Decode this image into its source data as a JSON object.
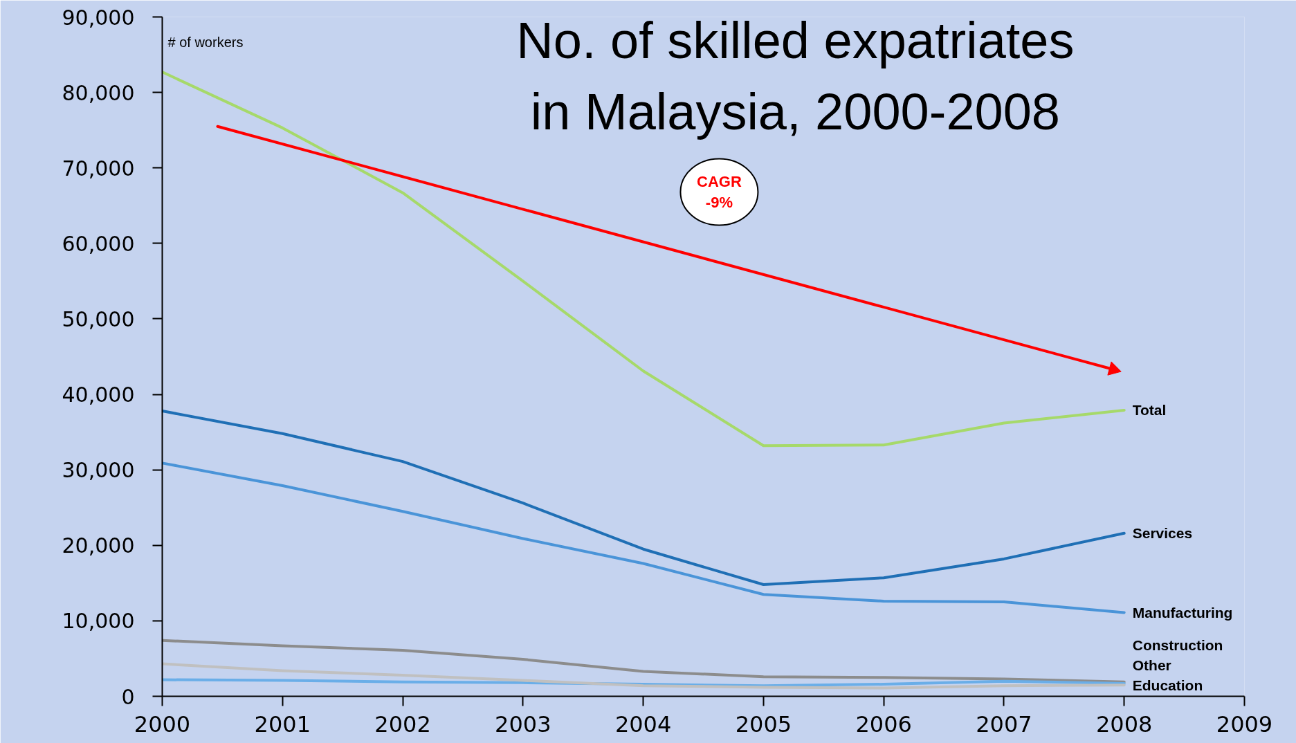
{
  "chart_data": {
    "type": "line",
    "title": "No. of skilled expatriates\nin Malaysia, 2000-2008",
    "ylabel": "# of workers",
    "x": [
      2000,
      2001,
      2002,
      2003,
      2004,
      2005,
      2006,
      2007,
      2008
    ],
    "xlim": [
      2000,
      2009
    ],
    "xticks": [
      2000,
      2001,
      2002,
      2003,
      2004,
      2005,
      2006,
      2007,
      2008,
      2009
    ],
    "ylim": [
      0,
      90000
    ],
    "yticks": [
      0,
      {
        "value": 10000,
        "label": "10,000"
      },
      {
        "value": 20000,
        "label": "20,000"
      },
      {
        "value": 30000,
        "label": "30,000"
      },
      {
        "value": 40000,
        "label": "40,000"
      },
      {
        "value": 50000,
        "label": "50,000"
      },
      {
        "value": 60000,
        "label": "60,000"
      },
      {
        "value": 70000,
        "label": "70,000"
      },
      {
        "value": 80000,
        "label": "80,000"
      },
      {
        "value": 90000,
        "label": "90,000"
      }
    ],
    "grid": false,
    "legend": false,
    "marker": "none",
    "line_style": "solid",
    "series": [
      {
        "name": "Total",
        "color": "#a6d96a",
        "values": [
          82700,
          75300,
          66700,
          55000,
          43100,
          33200,
          33300,
          36200,
          37900
        ]
      },
      {
        "name": "Services",
        "color": "#1f6fb5",
        "values": [
          37800,
          34800,
          31100,
          25600,
          19500,
          14800,
          15700,
          18200,
          21600
        ]
      },
      {
        "name": "Manufacturing",
        "color": "#4a94d8",
        "values": [
          30900,
          27900,
          24500,
          20900,
          17600,
          13500,
          12600,
          12500,
          11100
        ]
      },
      {
        "name": "Construction",
        "color": "#8c8c8c",
        "values": [
          7400,
          6700,
          6100,
          4900,
          3300,
          2600,
          2500,
          2300,
          1900
        ]
      },
      {
        "name": "Other",
        "color": "#6aaee8",
        "values": [
          2200,
          2100,
          1900,
          1800,
          1600,
          1400,
          1600,
          2000,
          1700
        ]
      },
      {
        "name": "Education",
        "color": "#c0c0c0",
        "values": [
          4300,
          3400,
          2800,
          2100,
          1400,
          1200,
          1100,
          1400,
          1500
        ]
      },
      {
        "type": "line",
        "color": "#ff0000",
        "marker": "triangle",
        "x": [
          2000.46,
          2007.91
        ],
        "values": [
          75500,
          43300
        ]
      }
    ],
    "annotations": [
      "CAGR\n-9%"
    ]
  }
}
